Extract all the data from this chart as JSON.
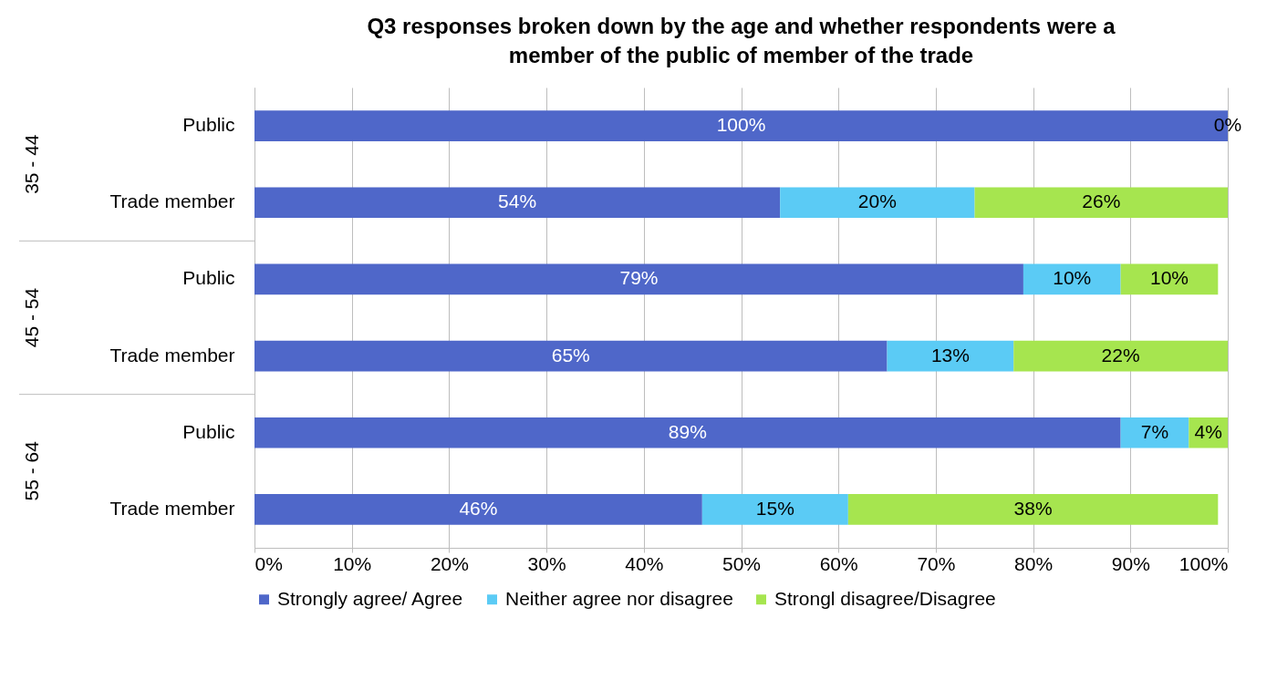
{
  "chart_data": {
    "type": "bar",
    "orientation": "horizontal",
    "stacked": true,
    "title": "Q3 responses broken down by the age and whether respondents were a member of the public of member of the trade",
    "categories": [
      "Public",
      "Trade member",
      "Public",
      "Trade member",
      "Public",
      "Trade member"
    ],
    "annotations": [
      "35 - 44",
      "45 - 54",
      "55 - 64"
    ],
    "series": [
      {
        "name": "Strongly agree/ Agree",
        "color": "#4f67c9",
        "values": [
          100,
          54,
          79,
          65,
          89,
          46
        ],
        "value_labels": [
          "100%",
          "54%",
          "79%",
          "65%",
          "89%",
          "46%"
        ]
      },
      {
        "name": "Neither agree nor disagree",
        "color": "#5bcbf5",
        "values": [
          0,
          20,
          10,
          13,
          7,
          15
        ],
        "value_labels": [
          "0%",
          "20%",
          "10%",
          "13%",
          "7%",
          "15%"
        ]
      },
      {
        "name": "Strongl disagree/Disagree",
        "color": "#a6e54f",
        "values": [
          0,
          26,
          10,
          22,
          4,
          38
        ],
        "value_labels": [
          null,
          "26%",
          "10%",
          "22%",
          "4%",
          "38%"
        ]
      }
    ],
    "xlim": [
      0,
      100
    ],
    "xticks": [
      {
        "value": 0,
        "label": "0%"
      },
      {
        "value": 10,
        "label": "10%"
      },
      {
        "value": 20,
        "label": "20%"
      },
      {
        "value": 30,
        "label": "30%"
      },
      {
        "value": 40,
        "label": "40%"
      },
      {
        "value": 50,
        "label": "50%"
      },
      {
        "value": 60,
        "label": "60%"
      },
      {
        "value": 70,
        "label": "70%"
      },
      {
        "value": 80,
        "label": "80%"
      },
      {
        "value": 90,
        "label": "90%"
      },
      {
        "value": 100,
        "label": "100%"
      }
    ],
    "grid": "x",
    "legend": "bottom"
  }
}
